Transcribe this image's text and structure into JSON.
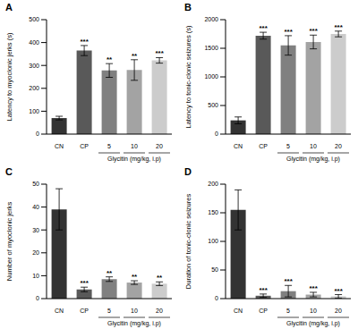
{
  "chart_data": [
    {
      "type": "bar",
      "title": "A",
      "y_label": "Latency to myoclonic jerks (s)",
      "x_label": "Glycitin (mg/kg, i.p)",
      "x_label_spans": [
        "5",
        "10",
        "20"
      ],
      "categories": [
        "CN",
        "CP",
        "5",
        "10",
        "20"
      ],
      "values": [
        70,
        365,
        278,
        280,
        322
      ],
      "errors": [
        8,
        22,
        30,
        45,
        12
      ],
      "significance": [
        null,
        "***",
        "**",
        "**",
        "***"
      ],
      "colors": [
        "#333333",
        "#595959",
        "#808080",
        "#a3a3a3",
        "#cccccc"
      ],
      "ylim": [
        0,
        500
      ],
      "yticks": [
        0,
        100,
        200,
        300,
        400,
        500
      ]
    },
    {
      "type": "bar",
      "title": "B",
      "y_label": "Latency to tonic-clonic seizures (s)",
      "x_label": "Glycitin (mg/kg, i.p)",
      "x_label_spans": [
        "5",
        "10",
        "20"
      ],
      "categories": [
        "CN",
        "CP",
        "5",
        "10",
        "20"
      ],
      "values": [
        240,
        1720,
        1550,
        1610,
        1750
      ],
      "errors": [
        60,
        60,
        170,
        120,
        50
      ],
      "significance": [
        null,
        "***",
        "***",
        "***",
        "***"
      ],
      "colors": [
        "#333333",
        "#595959",
        "#808080",
        "#a3a3a3",
        "#cccccc"
      ],
      "ylim": [
        0,
        2000
      ],
      "yticks": [
        0,
        500,
        1000,
        1500,
        2000
      ]
    },
    {
      "type": "bar",
      "title": "C",
      "y_label": "Number of myoclonic jerks",
      "x_label": "Glycitin (mg/kg, i.p)",
      "x_label_spans": [
        "5",
        "10",
        "20"
      ],
      "categories": [
        "CN",
        "CP",
        "5",
        "10",
        "20"
      ],
      "values": [
        39,
        4,
        8.5,
        7,
        6.5
      ],
      "errors": [
        9,
        1,
        1,
        0.8,
        0.8
      ],
      "significance": [
        null,
        "***",
        "**",
        "**",
        "**"
      ],
      "colors": [
        "#333333",
        "#595959",
        "#808080",
        "#a3a3a3",
        "#cccccc"
      ],
      "ylim": [
        0,
        50
      ],
      "yticks": [
        0,
        10,
        20,
        30,
        40,
        50
      ]
    },
    {
      "type": "bar",
      "title": "D",
      "y_label": "Duration of tonic-clonic seizures",
      "x_label": "Glycitin (mg/kg, i.p)",
      "x_label_spans": [
        "5",
        "10",
        "20"
      ],
      "categories": [
        "CN",
        "CP",
        "5",
        "10",
        "20"
      ],
      "values": [
        155,
        5,
        13,
        7,
        4
      ],
      "errors": [
        35,
        3,
        10,
        4,
        3
      ],
      "significance": [
        null,
        "***",
        "***",
        "***",
        "***"
      ],
      "colors": [
        "#333333",
        "#595959",
        "#808080",
        "#a3a3a3",
        "#cccccc"
      ],
      "ylim": [
        0,
        200
      ],
      "yticks": [
        0,
        50,
        100,
        150,
        200
      ]
    }
  ]
}
